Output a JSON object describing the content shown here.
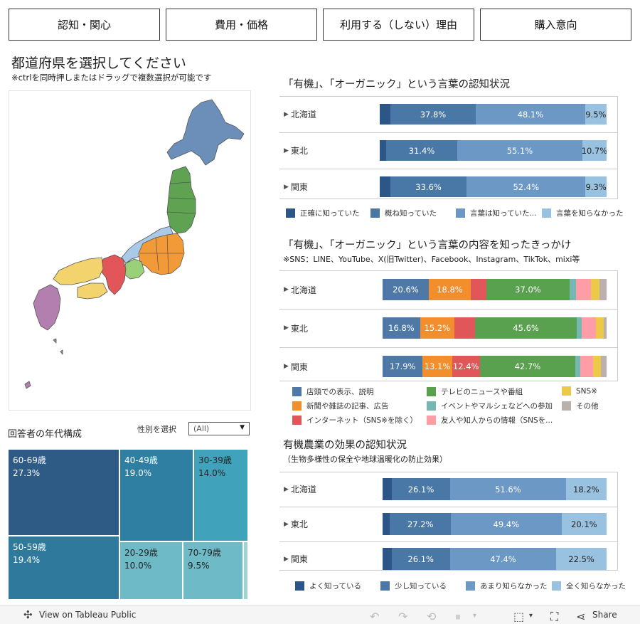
{
  "tabs": [
    "認知・関心",
    "費用・価格",
    "利用する（しない）理由",
    "購入意向"
  ],
  "map": {
    "title": "都道府県を選択してください",
    "hint": "※ctrlを同時押しまたはドラッグで複数選択が可能です"
  },
  "age": {
    "title": "回答者の年代構成",
    "filter_label": "性別を選択",
    "filter_value": "(All)",
    "cells": [
      {
        "label": "60-69歳",
        "value": "27.3%",
        "color": "#2e5a86"
      },
      {
        "label": "50-59歳",
        "value": "19.4%",
        "color": "#2f7a9c"
      },
      {
        "label": "40-49歳",
        "value": "19.0%",
        "color": "#2f7fa3"
      },
      {
        "label": "30-39歳",
        "value": "14.0%",
        "color": "#40a2bb"
      },
      {
        "label": "20-29歳",
        "value": "10.0%",
        "color": "#6fbac7"
      },
      {
        "label": "70-79歳",
        "value": "9.5%",
        "color": "#6fbac7"
      }
    ]
  },
  "chart1": {
    "title": "「有機」、「オーガニック」という言葉の認知状況",
    "rows": [
      "北海道",
      "東北",
      "関東"
    ],
    "colors": [
      "#2c5687",
      "#4a78a6",
      "#6b98c4",
      "#99c2e0"
    ],
    "legend": [
      "正確に知っていた",
      "概ね知っていた",
      "言葉は知っていた...",
      "言葉を知らなかった"
    ],
    "data": [
      [
        4.6,
        37.8,
        48.1,
        9.5
      ],
      [
        2.8,
        31.4,
        55.1,
        10.7
      ],
      [
        4.7,
        33.6,
        52.4,
        9.3
      ]
    ],
    "labels": [
      [
        "",
        "37.8%",
        "48.1%",
        "9.5%"
      ],
      [
        "",
        "31.4%",
        "55.1%",
        "10.7%"
      ],
      [
        "",
        "33.6%",
        "52.4%",
        "9.3%"
      ]
    ]
  },
  "chart2": {
    "title": "「有機」、「オーガニック」という言葉の内容を知ったきっかけ",
    "subtitle": "※SNS：LINE、YouTube、X(旧Twitter)、Facebook、Instagram、TikTok、mixi等",
    "rows": [
      "北海道",
      "東北",
      "関東"
    ],
    "colors": [
      "#4e79a7",
      "#f28e2b",
      "#e15759",
      "#59a14f",
      "#76b7b2",
      "#ff9da7",
      "#edc948",
      "#bab0ac"
    ],
    "legend": [
      "店頭での表示、説明",
      "テレビのニュースや番組",
      "SNS※",
      "新聞や雑誌の記事、広告",
      "イベントやマルシェなどへの参加",
      "その他",
      "インターネット（SNS※を除く）",
      "友人や知人からの情報（SNSを..."
    ],
    "legend_colors": [
      "#4e79a7",
      "#59a14f",
      "#edc948",
      "#f28e2b",
      "#76b7b2",
      "#bab0ac",
      "#e15759",
      "#ff9da7"
    ],
    "data": [
      [
        20.6,
        18.8,
        7.0,
        37.0,
        3.0,
        6.5,
        4.0,
        3.1
      ],
      [
        16.8,
        15.2,
        9.2,
        45.6,
        2.0,
        6.5,
        3.5,
        1.2
      ],
      [
        17.9,
        13.1,
        12.4,
        42.7,
        2.0,
        6.0,
        3.5,
        2.4
      ]
    ],
    "labels": [
      [
        "20.6%",
        "18.8%",
        "",
        "37.0%",
        "",
        "",
        "",
        ""
      ],
      [
        "16.8%",
        "15.2%",
        "",
        "45.6%",
        "",
        "",
        "",
        ""
      ],
      [
        "17.9%",
        "13.1%",
        "12.4%",
        "42.7%",
        "",
        "",
        "",
        ""
      ]
    ]
  },
  "chart3": {
    "title": "有機農業の効果の認知状況",
    "subtitle": "（生物多様性の保全や地球温暖化の防止効果）",
    "rows": [
      "北海道",
      "東北",
      "関東"
    ],
    "colors": [
      "#2c5687",
      "#4a78a6",
      "#6b98c4",
      "#99c2e0"
    ],
    "legend": [
      "よく知っている",
      "少し知っている",
      "あまり知らなかった",
      "全く知らなかった"
    ],
    "data": [
      [
        4.1,
        26.1,
        51.6,
        18.2
      ],
      [
        3.3,
        27.2,
        49.4,
        20.1
      ],
      [
        4.0,
        26.1,
        47.4,
        22.5
      ]
    ],
    "labels": [
      [
        "",
        "26.1%",
        "51.6%",
        "18.2%"
      ],
      [
        "",
        "27.2%",
        "49.4%",
        "20.1%"
      ],
      [
        "",
        "26.1%",
        "47.4%",
        "22.5%"
      ]
    ]
  },
  "footer": {
    "view_label": "View on Tableau Public",
    "share_label": "Share"
  }
}
